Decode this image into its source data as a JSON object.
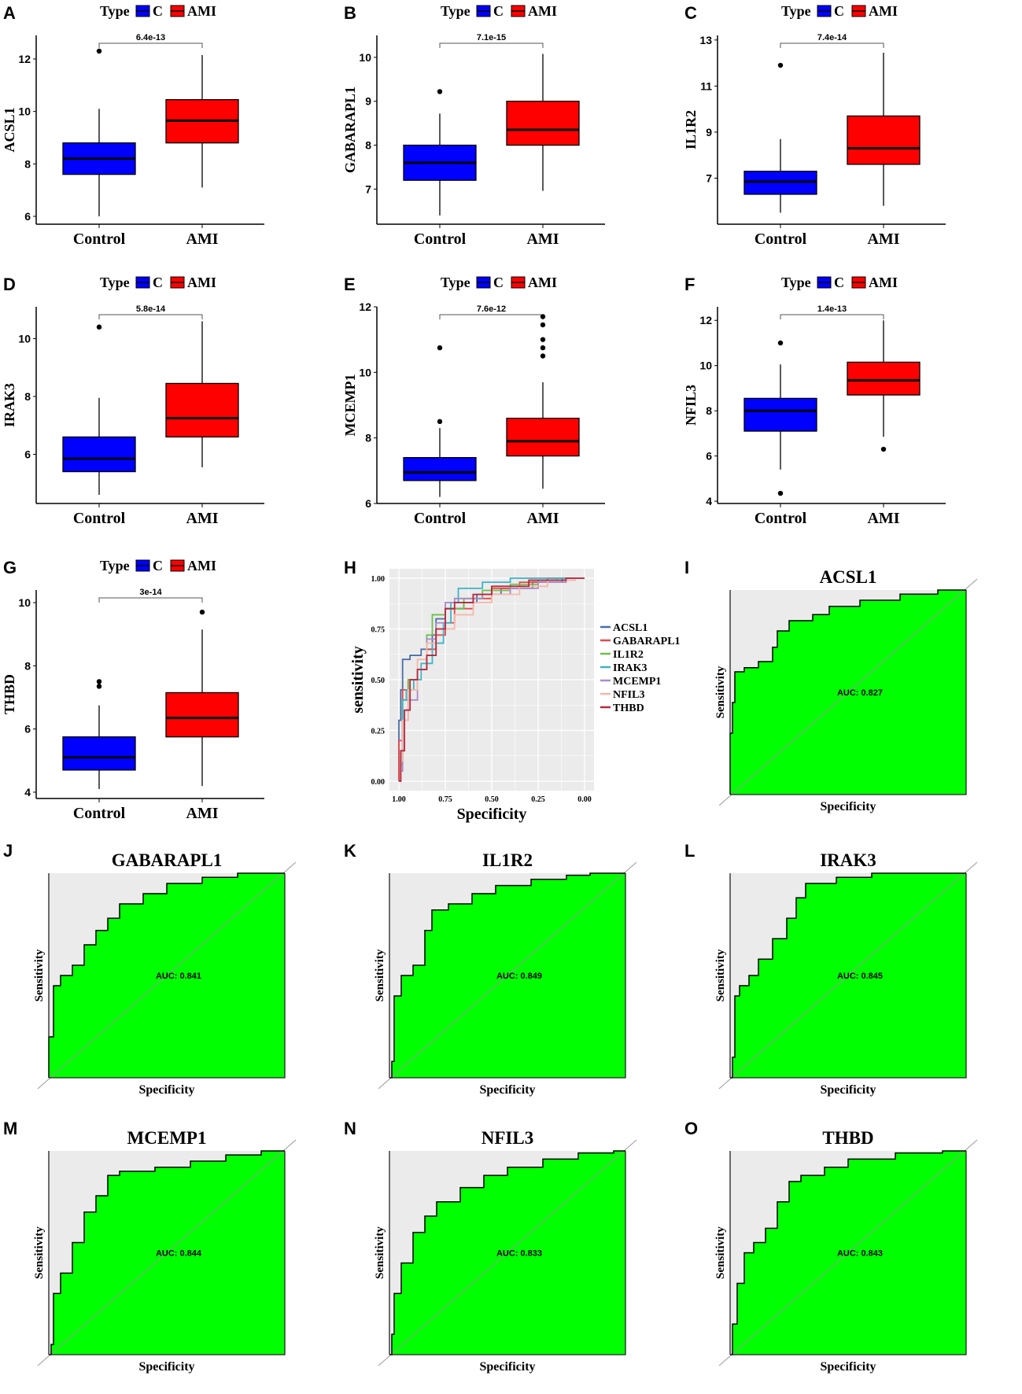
{
  "colors": {
    "control": "#0000ff",
    "ami": "#ff0000",
    "roc_fill": "#00ff00",
    "roc_bg": "#ebebeb"
  },
  "chart_data": [
    {
      "panel": "A",
      "type": "box",
      "ylabel": "ACSL1",
      "ylim": [
        5.7,
        12.9
      ],
      "yticks": [
        6,
        8,
        10,
        12
      ],
      "pvalue": "6.4e-13",
      "legend": {
        "title": "Type",
        "items": [
          "C",
          "AMI"
        ]
      },
      "categories": [
        "Control",
        "AMI"
      ],
      "groups": [
        {
          "min": 6.0,
          "q1": 7.6,
          "median": 8.2,
          "q3": 8.8,
          "max": 10.1,
          "outliers": [
            12.3
          ]
        },
        {
          "min": 7.1,
          "q1": 8.8,
          "median": 9.65,
          "q3": 10.45,
          "max": 12.15,
          "outliers": []
        }
      ]
    },
    {
      "panel": "B",
      "type": "box",
      "ylabel": "GABARAPL1",
      "ylim": [
        6.2,
        10.5
      ],
      "yticks": [
        7,
        8,
        9,
        10
      ],
      "pvalue": "7.1e-15",
      "legend": {
        "title": "Type",
        "items": [
          "C",
          "AMI"
        ]
      },
      "categories": [
        "Control",
        "AMI"
      ],
      "groups": [
        {
          "min": 6.4,
          "q1": 7.2,
          "median": 7.6,
          "q3": 8.0,
          "max": 8.72,
          "outliers": [
            9.22
          ]
        },
        {
          "min": 6.96,
          "q1": 8.0,
          "median": 8.35,
          "q3": 9.0,
          "max": 10.08,
          "outliers": []
        }
      ]
    },
    {
      "panel": "C",
      "type": "box",
      "ylabel": "IL1R2",
      "ylim": [
        5.0,
        13.2
      ],
      "yticks": [
        7,
        9,
        11,
        13
      ],
      "pvalue": "7.4e-14",
      "legend": {
        "title": "Type",
        "items": [
          "C",
          "AMI"
        ]
      },
      "categories": [
        "Control",
        "AMI"
      ],
      "groups": [
        {
          "min": 5.5,
          "q1": 6.3,
          "median": 6.85,
          "q3": 7.3,
          "max": 8.7,
          "outliers": [
            11.9
          ]
        },
        {
          "min": 5.8,
          "q1": 7.6,
          "median": 8.3,
          "q3": 9.7,
          "max": 12.45,
          "outliers": []
        }
      ]
    },
    {
      "panel": "D",
      "type": "box",
      "ylabel": "IRAK3",
      "ylim": [
        4.3,
        11.1
      ],
      "yticks": [
        6,
        8,
        10
      ],
      "pvalue": "5.8e-14",
      "legend": {
        "title": "Type",
        "items": [
          "C",
          "AMI"
        ]
      },
      "categories": [
        "Control",
        "AMI"
      ],
      "groups": [
        {
          "min": 4.6,
          "q1": 5.4,
          "median": 5.85,
          "q3": 6.6,
          "max": 7.95,
          "outliers": [
            10.4
          ]
        },
        {
          "min": 5.55,
          "q1": 6.6,
          "median": 7.25,
          "q3": 8.45,
          "max": 10.6,
          "outliers": []
        }
      ]
    },
    {
      "panel": "E",
      "type": "box",
      "ylabel": "MCEMP1",
      "ylim": [
        6.0,
        12.0
      ],
      "yticks": [
        6,
        8,
        10,
        12
      ],
      "pvalue": "7.6e-12",
      "legend": {
        "title": "Type",
        "items": [
          "C",
          "AMI"
        ]
      },
      "categories": [
        "Control",
        "AMI"
      ],
      "groups": [
        {
          "min": 6.2,
          "q1": 6.7,
          "median": 6.95,
          "q3": 7.4,
          "max": 8.3,
          "outliers": [
            8.5,
            10.75
          ]
        },
        {
          "min": 6.45,
          "q1": 7.45,
          "median": 7.9,
          "q3": 8.6,
          "max": 9.7,
          "outliers": [
            10.5,
            10.75,
            11.0,
            11.45,
            11.7
          ]
        }
      ]
    },
    {
      "panel": "F",
      "type": "box",
      "ylabel": "NFIL3",
      "ylim": [
        3.9,
        12.6
      ],
      "yticks": [
        4,
        6,
        8,
        10,
        12
      ],
      "pvalue": "1.4e-13",
      "legend": {
        "title": "Type",
        "items": [
          "C",
          "AMI"
        ]
      },
      "categories": [
        "Control",
        "AMI"
      ],
      "groups": [
        {
          "min": 5.4,
          "q1": 7.1,
          "median": 8.0,
          "q3": 8.55,
          "max": 10.05,
          "outliers": [
            4.35,
            11.0
          ]
        },
        {
          "min": 6.85,
          "q1": 8.7,
          "median": 9.35,
          "q3": 10.15,
          "max": 12.0,
          "outliers": [
            6.3
          ]
        }
      ]
    },
    {
      "panel": "G",
      "type": "box",
      "ylabel": "THBD",
      "ylim": [
        3.8,
        10.4
      ],
      "yticks": [
        4,
        6,
        8,
        10
      ],
      "pvalue": "3e-14",
      "legend": {
        "title": "Type",
        "items": [
          "C",
          "AMI"
        ]
      },
      "categories": [
        "Control",
        "AMI"
      ],
      "groups": [
        {
          "min": 4.1,
          "q1": 4.7,
          "median": 5.1,
          "q3": 5.75,
          "max": 6.75,
          "outliers": [
            7.35,
            7.5
          ]
        },
        {
          "min": 4.2,
          "q1": 5.75,
          "median": 6.35,
          "q3": 7.15,
          "max": 9.15,
          "outliers": [
            9.7
          ]
        }
      ]
    },
    {
      "panel": "H",
      "type": "line",
      "xlabel": "Specificity",
      "ylabel": "sensitivity",
      "xticks": [
        "1.00",
        "0.75",
        "0.50",
        "0.25",
        "0.00"
      ],
      "yticks": [
        "0.00",
        "0.25",
        "0.50",
        "0.75",
        "1.00"
      ],
      "xlim": [
        1,
        0
      ],
      "ylim": [
        0,
        1
      ],
      "grid": true,
      "legend_position": "right",
      "series": [
        {
          "name": "ACSL1",
          "color": "#4a6fa5",
          "points_fpr_tpr": [
            [
              0,
              0
            ],
            [
              0,
              0.3
            ],
            [
              0.01,
              0.45
            ],
            [
              0.02,
              0.6
            ],
            [
              0.06,
              0.62
            ],
            [
              0.12,
              0.65
            ],
            [
              0.18,
              0.72
            ],
            [
              0.2,
              0.8
            ],
            [
              0.25,
              0.85
            ],
            [
              0.35,
              0.88
            ],
            [
              0.42,
              0.92
            ],
            [
              0.55,
              0.95
            ],
            [
              0.72,
              0.98
            ],
            [
              0.88,
              1.0
            ],
            [
              1,
              1
            ]
          ]
        },
        {
          "name": "GABARAPL1",
          "color": "#e8474a",
          "points_fpr_tpr": [
            [
              0,
              0
            ],
            [
              0,
              0.2
            ],
            [
              0.02,
              0.45
            ],
            [
              0.05,
              0.5
            ],
            [
              0.1,
              0.55
            ],
            [
              0.15,
              0.65
            ],
            [
              0.2,
              0.72
            ],
            [
              0.25,
              0.78
            ],
            [
              0.3,
              0.85
            ],
            [
              0.4,
              0.9
            ],
            [
              0.5,
              0.95
            ],
            [
              0.65,
              0.98
            ],
            [
              0.8,
              1.0
            ],
            [
              1,
              1
            ]
          ]
        },
        {
          "name": "IL1R2",
          "color": "#6cc04a",
          "points_fpr_tpr": [
            [
              0,
              0
            ],
            [
              0.01,
              0.08
            ],
            [
              0.02,
              0.4
            ],
            [
              0.05,
              0.5
            ],
            [
              0.1,
              0.55
            ],
            [
              0.15,
              0.72
            ],
            [
              0.18,
              0.82
            ],
            [
              0.25,
              0.85
            ],
            [
              0.35,
              0.9
            ],
            [
              0.45,
              0.94
            ],
            [
              0.6,
              0.97
            ],
            [
              0.75,
              0.99
            ],
            [
              0.85,
              1.0
            ],
            [
              1,
              1
            ]
          ]
        },
        {
          "name": "IRAK3",
          "color": "#3cb4c8",
          "points_fpr_tpr": [
            [
              0,
              0
            ],
            [
              0.01,
              0.1
            ],
            [
              0.02,
              0.4
            ],
            [
              0.04,
              0.45
            ],
            [
              0.08,
              0.5
            ],
            [
              0.12,
              0.58
            ],
            [
              0.18,
              0.68
            ],
            [
              0.24,
              0.78
            ],
            [
              0.28,
              0.88
            ],
            [
              0.32,
              0.95
            ],
            [
              0.45,
              0.98
            ],
            [
              0.6,
              1.0
            ],
            [
              1,
              1
            ]
          ]
        },
        {
          "name": "MCEMP1",
          "color": "#a98bc8",
          "points_fpr_tpr": [
            [
              0,
              0
            ],
            [
              0.01,
              0.05
            ],
            [
              0.02,
              0.3
            ],
            [
              0.05,
              0.4
            ],
            [
              0.1,
              0.55
            ],
            [
              0.15,
              0.7
            ],
            [
              0.2,
              0.78
            ],
            [
              0.25,
              0.88
            ],
            [
              0.3,
              0.9
            ],
            [
              0.45,
              0.92
            ],
            [
              0.6,
              0.95
            ],
            [
              0.75,
              0.98
            ],
            [
              0.9,
              1.0
            ],
            [
              1,
              1
            ]
          ]
        },
        {
          "name": "NFIL3",
          "color": "#f5b8a8",
          "points_fpr_tpr": [
            [
              0,
              0
            ],
            [
              0.01,
              0.1
            ],
            [
              0.02,
              0.3
            ],
            [
              0.05,
              0.45
            ],
            [
              0.1,
              0.6
            ],
            [
              0.15,
              0.68
            ],
            [
              0.2,
              0.75
            ],
            [
              0.3,
              0.82
            ],
            [
              0.4,
              0.88
            ],
            [
              0.5,
              0.92
            ],
            [
              0.65,
              0.96
            ],
            [
              0.8,
              0.99
            ],
            [
              0.95,
              1.0
            ],
            [
              1,
              1
            ]
          ]
        },
        {
          "name": "THBD",
          "color": "#b5283f",
          "points_fpr_tpr": [
            [
              0,
              0
            ],
            [
              0.01,
              0.15
            ],
            [
              0.03,
              0.35
            ],
            [
              0.06,
              0.5
            ],
            [
              0.1,
              0.55
            ],
            [
              0.15,
              0.62
            ],
            [
              0.2,
              0.75
            ],
            [
              0.25,
              0.85
            ],
            [
              0.3,
              0.88
            ],
            [
              0.4,
              0.92
            ],
            [
              0.5,
              0.96
            ],
            [
              0.7,
              0.99
            ],
            [
              0.9,
              1.0
            ],
            [
              1,
              1
            ]
          ]
        }
      ]
    },
    {
      "panel": "I",
      "type": "roc",
      "title": "ACSL1",
      "auc_label": "AUC: 0.827",
      "auc": 0.827,
      "xlabel": "Specificity",
      "ylabel": "Sensitivity"
    },
    {
      "panel": "J",
      "type": "roc",
      "title": "GABARAPL1",
      "auc_label": "AUC: 0.841",
      "auc": 0.841,
      "xlabel": "Specificity",
      "ylabel": "Sensitivity"
    },
    {
      "panel": "K",
      "type": "roc",
      "title": "IL1R2",
      "auc_label": "AUC: 0.849",
      "auc": 0.849,
      "xlabel": "Specificity",
      "ylabel": "Sensitivity"
    },
    {
      "panel": "L",
      "type": "roc",
      "title": "IRAK3",
      "auc_label": "AUC: 0.845",
      "auc": 0.845,
      "xlabel": "Specificity",
      "ylabel": "Sensitivity"
    },
    {
      "panel": "M",
      "type": "roc",
      "title": "MCEMP1",
      "auc_label": "AUC: 0.844",
      "auc": 0.844,
      "xlabel": "Specificity",
      "ylabel": "Sensitivity"
    },
    {
      "panel": "N",
      "type": "roc",
      "title": "NFIL3",
      "auc_label": "AUC: 0.833",
      "auc": 0.833,
      "xlabel": "Specificity",
      "ylabel": "Sensitivity"
    },
    {
      "panel": "O",
      "type": "roc",
      "title": "THBD",
      "auc_label": "AUC: 0.843",
      "auc": 0.843,
      "xlabel": "Specificity",
      "ylabel": "Sensitivity"
    }
  ]
}
